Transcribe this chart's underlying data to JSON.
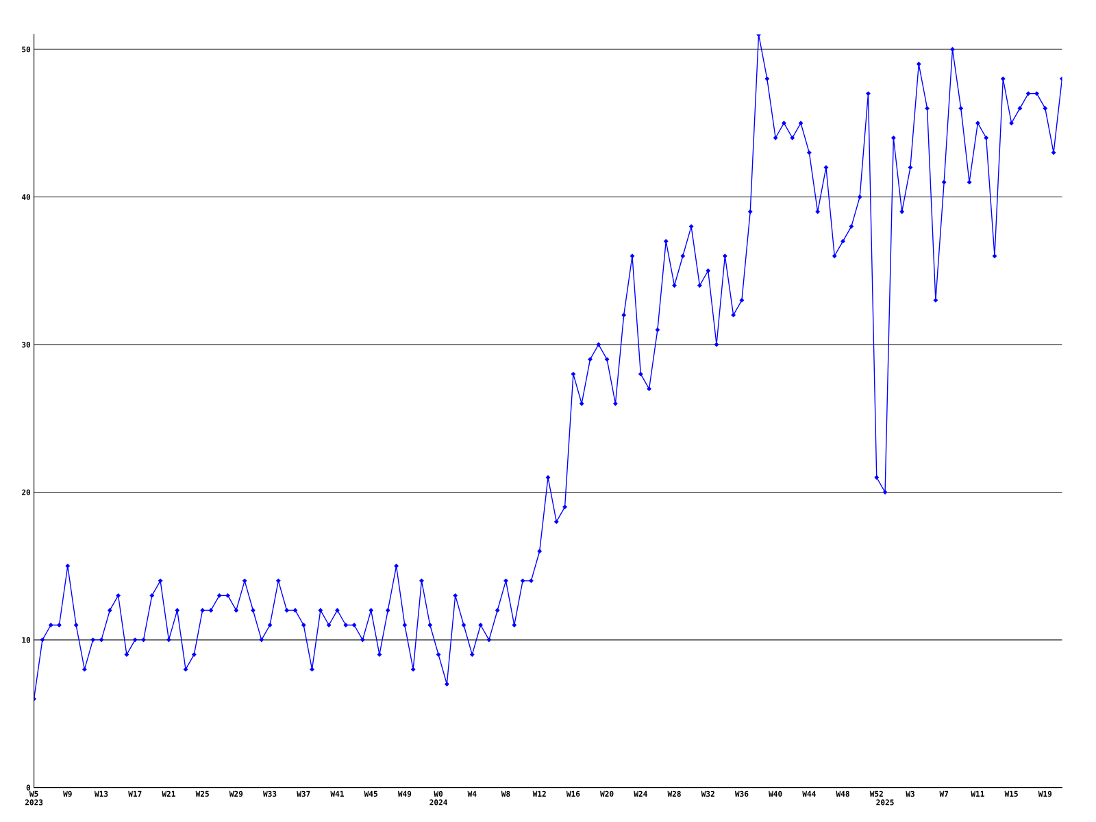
{
  "chart_data": {
    "type": "line",
    "categories": [
      "W5\n2023",
      null,
      null,
      null,
      "W9",
      null,
      null,
      null,
      "W13",
      null,
      null,
      null,
      "W17",
      null,
      null,
      null,
      "W21",
      null,
      null,
      null,
      "W25",
      null,
      null,
      null,
      "W29",
      null,
      null,
      null,
      "W33",
      null,
      null,
      null,
      "W37",
      null,
      null,
      null,
      "W41",
      null,
      null,
      null,
      "W45",
      null,
      null,
      null,
      "W49",
      null,
      null,
      null,
      "W0\n2024",
      null,
      null,
      null,
      "W4",
      null,
      null,
      null,
      "W8",
      null,
      null,
      null,
      "W12",
      null,
      null,
      null,
      "W16",
      null,
      null,
      null,
      "W20",
      null,
      null,
      null,
      "W24",
      null,
      null,
      null,
      "W28",
      null,
      null,
      null,
      "W32",
      null,
      null,
      null,
      "W36",
      null,
      null,
      null,
      "W40",
      null,
      null,
      null,
      "W44",
      null,
      null,
      null,
      "W48",
      null,
      null,
      null,
      "W52",
      "\n2025",
      null,
      null,
      "W3",
      null,
      null,
      null,
      "W7",
      null,
      null,
      null,
      "W11",
      null,
      null,
      null,
      "W15",
      null,
      null,
      null,
      "W19",
      null,
      null
    ],
    "series": [
      {
        "color": "#0000ff",
        "values": [
          6,
          10,
          11,
          11,
          15,
          11,
          8,
          10,
          10,
          12,
          13,
          9,
          10,
          10,
          13,
          14,
          10,
          12,
          8,
          9,
          12,
          12,
          13,
          13,
          12,
          14,
          12,
          10,
          11,
          14,
          12,
          12,
          11,
          8,
          12,
          11,
          12,
          11,
          11,
          10,
          12,
          9,
          12,
          15,
          11,
          8,
          14,
          11,
          9,
          7,
          13,
          11,
          9,
          11,
          10,
          12,
          14,
          11,
          14,
          14,
          16,
          21,
          18,
          19,
          28,
          26,
          29,
          30,
          29,
          26,
          32,
          36,
          28,
          27,
          31,
          37,
          34,
          36,
          38,
          34,
          35,
          30,
          36,
          32,
          33,
          39,
          51,
          48,
          44,
          45,
          44,
          45,
          43,
          39,
          42,
          36,
          37,
          38,
          40,
          47,
          21,
          20,
          44,
          39,
          42,
          49,
          46,
          33,
          41,
          50,
          46,
          41,
          45,
          44,
          36,
          48,
          45,
          46,
          47,
          47,
          46,
          43,
          48
        ]
      }
    ],
    "ylim": [
      0,
      51
    ],
    "yticks": [
      0,
      10,
      20,
      30,
      40,
      50
    ],
    "grid": "y",
    "marker": "diamond",
    "line_style": "solid"
  }
}
